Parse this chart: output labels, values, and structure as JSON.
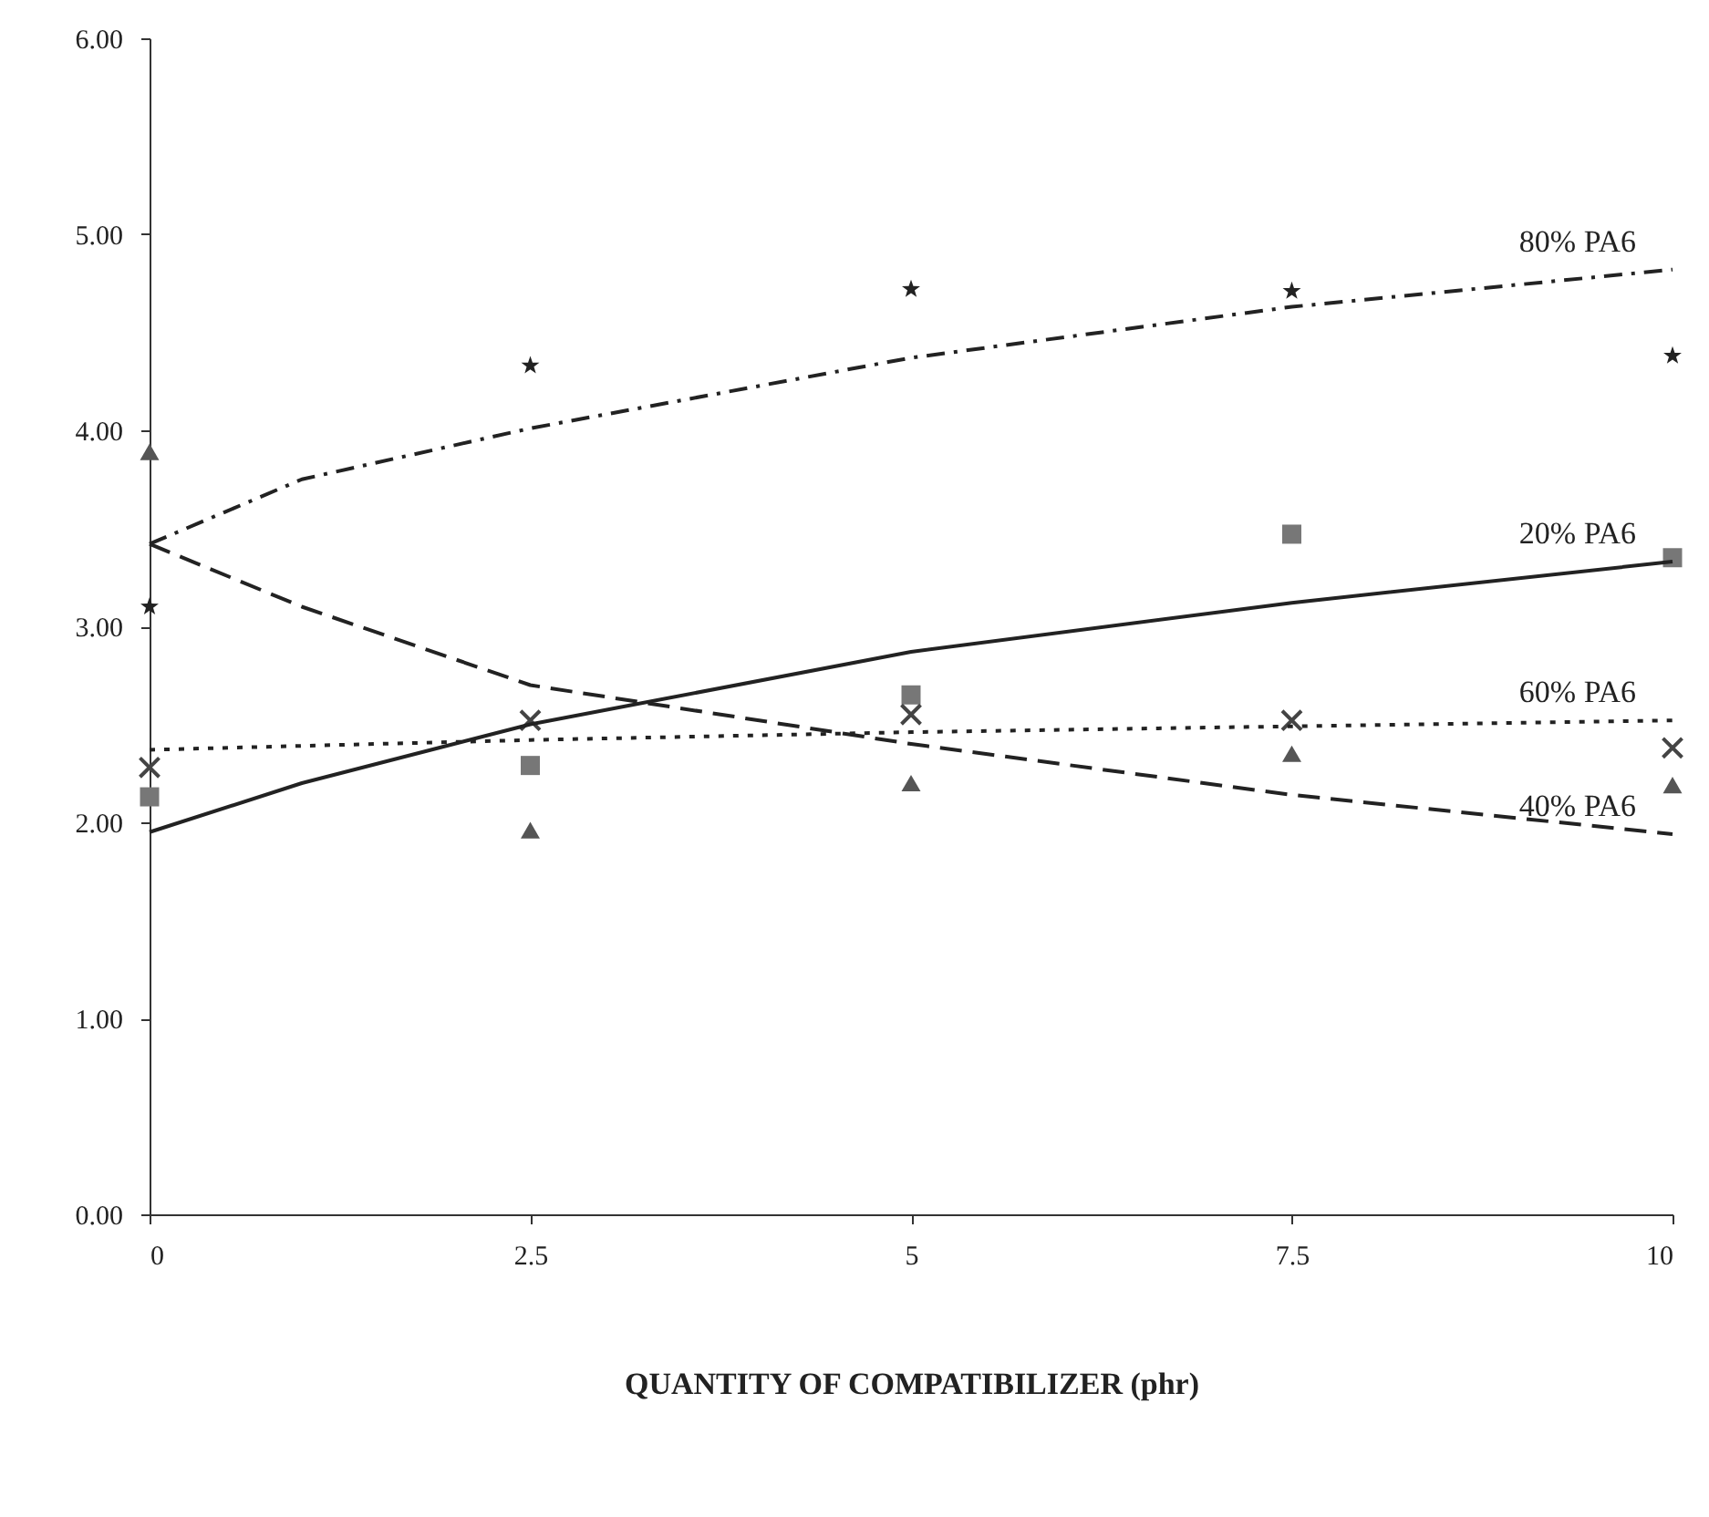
{
  "chart_data": {
    "type": "scatter",
    "xlabel": "QUANTITY OF COMPATIBILIZER (phr)",
    "xlim": [
      0,
      10
    ],
    "xticks": [
      0,
      2.5,
      5,
      7.5,
      10
    ],
    "ylim": [
      0,
      6
    ],
    "yticks": [
      {
        "value": 0,
        "label": "0.00"
      },
      {
        "value": 1,
        "label": "1.00"
      },
      {
        "value": 2,
        "label": "2.00"
      },
      {
        "value": 3,
        "label": "3.00"
      },
      {
        "value": 4,
        "label": "4.00"
      },
      {
        "value": 5,
        "label": "5.00"
      },
      {
        "value": 6,
        "label": "6.00"
      }
    ],
    "series": [
      {
        "marker": "square",
        "color": "#777777",
        "x": [
          0,
          2.5,
          5,
          7.5,
          10
        ],
        "values": [
          2.13,
          2.29,
          2.65,
          3.47,
          3.35
        ]
      },
      {
        "marker": "triangle",
        "color": "#555555",
        "x": [
          0,
          2.5,
          5,
          7.5,
          10
        ],
        "values": [
          3.89,
          1.96,
          2.2,
          2.35,
          2.19
        ]
      },
      {
        "marker": "cross",
        "color": "#444444",
        "x": [
          0,
          2.5,
          5,
          7.5,
          10
        ],
        "values": [
          2.28,
          2.52,
          2.55,
          2.52,
          2.38
        ]
      },
      {
        "marker": "star",
        "color": "#222222",
        "x": [
          0,
          2.5,
          5,
          7.5,
          10
        ],
        "values": [
          3.1,
          4.33,
          4.72,
          4.71,
          4.38
        ]
      },
      {
        "type": "line",
        "name": "20% PA6",
        "line_style": "solid",
        "color": "#222222",
        "x": [
          0,
          1,
          2.5,
          5,
          7.5,
          10
        ],
        "values": [
          1.95,
          2.2,
          2.5,
          2.87,
          3.12,
          3.33
        ]
      },
      {
        "type": "line",
        "name": "40% PA6",
        "line_style": "dashed",
        "color": "#222222",
        "x": [
          0,
          1,
          2.5,
          5,
          7.5,
          10
        ],
        "values": [
          3.42,
          3.1,
          2.7,
          2.4,
          2.14,
          1.94
        ]
      },
      {
        "type": "line",
        "name": "60% PA6",
        "line_style": "dotted",
        "color": "#222222",
        "x": [
          0,
          2.5,
          5,
          7.5,
          10
        ],
        "values": [
          2.37,
          2.42,
          2.46,
          2.49,
          2.52
        ]
      },
      {
        "type": "line",
        "name": "80% PA6",
        "line_style": "dashdot",
        "color": "#222222",
        "x": [
          0,
          1,
          2.5,
          5,
          7.5,
          10
        ],
        "values": [
          3.42,
          3.75,
          4.01,
          4.37,
          4.63,
          4.82
        ]
      }
    ]
  }
}
